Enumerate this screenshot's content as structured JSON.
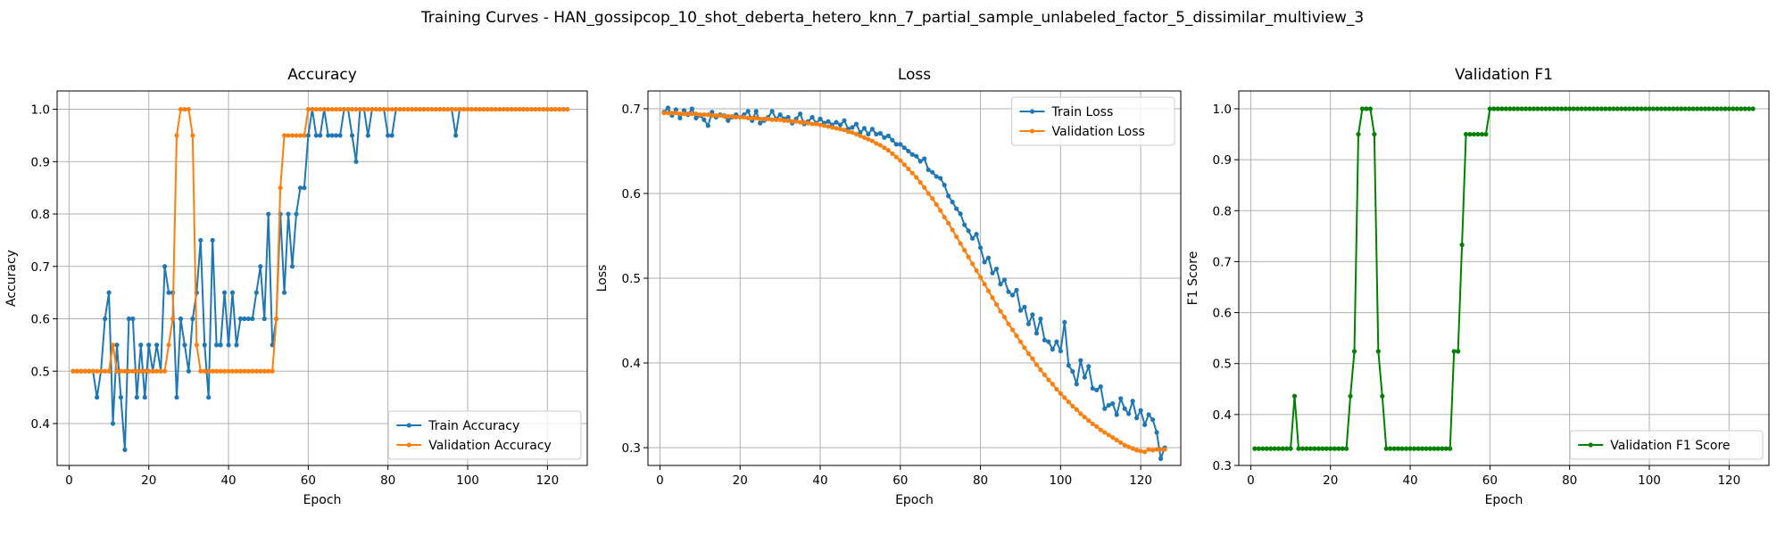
{
  "figure_title": "Training Curves - HAN_gossipcop_10_shot_deberta_hetero_knn_7_partial_sample_unlabeled_factor_5_dissimilar_multiview_3",
  "chart_data": [
    {
      "type": "line",
      "title": "Accuracy",
      "xlabel": "Epoch",
      "ylabel": "Accuracy",
      "xlim": [
        -3,
        130
      ],
      "ylim": [
        0.32,
        1.035
      ],
      "xticks": [
        0,
        20,
        40,
        60,
        80,
        100,
        120
      ],
      "yticks": [
        0.4,
        0.5,
        0.6,
        0.7,
        0.8,
        0.9,
        1.0
      ],
      "xtick_labels": [
        "0",
        "20",
        "40",
        "60",
        "80",
        "100",
        "120"
      ],
      "ytick_labels": [
        "0.4",
        "0.5",
        "0.6",
        "0.7",
        "0.8",
        "0.9",
        "1.0"
      ],
      "grid": true,
      "legend_position": "bottom-right",
      "series": [
        {
          "name": "Train Accuracy",
          "color": "#1f77b4",
          "values": [
            0.5,
            0.5,
            0.5,
            0.5,
            0.5,
            0.5,
            0.45,
            0.5,
            0.6,
            0.65,
            0.4,
            0.55,
            0.45,
            0.35,
            0.6,
            0.6,
            0.45,
            0.55,
            0.45,
            0.55,
            0.5,
            0.55,
            0.5,
            0.7,
            0.65,
            0.65,
            0.45,
            0.6,
            0.55,
            0.5,
            0.6,
            0.65,
            0.75,
            0.55,
            0.45,
            0.75,
            0.55,
            0.55,
            0.65,
            0.55,
            0.65,
            0.55,
            0.6,
            0.6,
            0.6,
            0.6,
            0.65,
            0.7,
            0.6,
            0.8,
            0.55,
            0.6,
            0.8,
            0.65,
            0.8,
            0.7,
            0.8,
            0.85,
            0.85,
            0.95,
            1.0,
            0.95,
            0.95,
            1.0,
            0.95,
            0.95,
            0.95,
            0.95,
            1.0,
            1.0,
            0.95,
            0.9,
            1.0,
            1.0,
            0.95,
            1.0,
            1.0,
            1.0,
            1.0,
            0.95,
            0.95,
            1.0,
            1.0,
            1.0,
            1.0,
            1.0,
            1.0,
            1.0,
            1.0,
            1.0,
            1.0,
            1.0,
            1.0,
            1.0,
            1.0,
            1.0,
            0.95,
            1.0,
            1.0,
            1.0,
            1.0,
            1.0,
            1.0,
            1.0,
            1.0,
            1.0,
            1.0,
            1.0,
            1.0,
            1.0,
            1.0,
            1.0,
            1.0,
            1.0,
            1.0,
            1.0,
            1.0,
            1.0,
            1.0,
            1.0,
            1.0,
            1.0,
            1.0,
            1.0,
            1.0
          ]
        },
        {
          "name": "Validation Accuracy",
          "color": "#ff7f0e",
          "values": [
            0.5,
            0.5,
            0.5,
            0.5,
            0.5,
            0.5,
            0.5,
            0.5,
            0.5,
            0.5,
            0.55,
            0.5,
            0.5,
            0.5,
            0.5,
            0.5,
            0.5,
            0.5,
            0.5,
            0.5,
            0.5,
            0.5,
            0.5,
            0.5,
            0.55,
            0.6,
            0.95,
            1.0,
            1.0,
            1.0,
            0.95,
            0.55,
            0.5,
            0.5,
            0.5,
            0.5,
            0.5,
            0.5,
            0.5,
            0.5,
            0.5,
            0.5,
            0.5,
            0.5,
            0.5,
            0.5,
            0.5,
            0.5,
            0.5,
            0.5,
            0.5,
            0.6,
            0.85,
            0.95,
            0.95,
            0.95,
            0.95,
            0.95,
            0.95,
            1.0,
            1.0,
            1.0,
            1.0,
            1.0,
            1.0,
            1.0,
            1.0,
            1.0,
            1.0,
            1.0,
            1.0,
            1.0,
            1.0,
            1.0,
            1.0,
            1.0,
            1.0,
            1.0,
            1.0,
            1.0,
            1.0,
            1.0,
            1.0,
            1.0,
            1.0,
            1.0,
            1.0,
            1.0,
            1.0,
            1.0,
            1.0,
            1.0,
            1.0,
            1.0,
            1.0,
            1.0,
            1.0,
            1.0,
            1.0,
            1.0,
            1.0,
            1.0,
            1.0,
            1.0,
            1.0,
            1.0,
            1.0,
            1.0,
            1.0,
            1.0,
            1.0,
            1.0,
            1.0,
            1.0,
            1.0,
            1.0,
            1.0,
            1.0,
            1.0,
            1.0,
            1.0,
            1.0,
            1.0,
            1.0,
            1.0
          ]
        }
      ]
    },
    {
      "type": "line",
      "title": "Loss",
      "xlabel": "Epoch",
      "ylabel": "Loss",
      "xlim": [
        -3,
        130
      ],
      "ylim": [
        0.279,
        0.721
      ],
      "xticks": [
        0,
        20,
        40,
        60,
        80,
        100,
        120
      ],
      "yticks": [
        0.3,
        0.4,
        0.5,
        0.6,
        0.7
      ],
      "xtick_labels": [
        "0",
        "20",
        "40",
        "60",
        "80",
        "100",
        "120"
      ],
      "ytick_labels": [
        "0.3",
        "0.4",
        "0.5",
        "0.6",
        "0.7"
      ],
      "grid": true,
      "legend_position": "top-right",
      "series": [
        {
          "name": "Train Loss",
          "color": "#1f77b4",
          "values": [
            0.696,
            0.701,
            0.692,
            0.699,
            0.689,
            0.698,
            0.693,
            0.7,
            0.689,
            0.692,
            0.687,
            0.68,
            0.696,
            0.69,
            0.693,
            0.692,
            0.686,
            0.69,
            0.693,
            0.69,
            0.693,
            0.697,
            0.686,
            0.697,
            0.683,
            0.686,
            0.69,
            0.697,
            0.688,
            0.693,
            0.688,
            0.69,
            0.683,
            0.688,
            0.694,
            0.682,
            0.685,
            0.69,
            0.683,
            0.688,
            0.683,
            0.685,
            0.681,
            0.684,
            0.681,
            0.686,
            0.676,
            0.678,
            0.682,
            0.672,
            0.677,
            0.67,
            0.676,
            0.67,
            0.671,
            0.666,
            0.668,
            0.663,
            0.658,
            0.658,
            0.654,
            0.65,
            0.646,
            0.644,
            0.638,
            0.641,
            0.628,
            0.625,
            0.62,
            0.618,
            0.61,
            0.597,
            0.59,
            0.582,
            0.576,
            0.563,
            0.556,
            0.547,
            0.552,
            0.536,
            0.519,
            0.524,
            0.506,
            0.511,
            0.493,
            0.498,
            0.484,
            0.48,
            0.486,
            0.462,
            0.466,
            0.446,
            0.457,
            0.435,
            0.452,
            0.427,
            0.425,
            0.416,
            0.425,
            0.414,
            0.448,
            0.397,
            0.39,
            0.375,
            0.403,
            0.383,
            0.396,
            0.37,
            0.368,
            0.372,
            0.346,
            0.35,
            0.352,
            0.339,
            0.358,
            0.346,
            0.34,
            0.355,
            0.335,
            0.344,
            0.327,
            0.339,
            0.333,
            0.318,
            0.287,
            0.3
          ]
        },
        {
          "name": "Validation Loss",
          "color": "#ff7f0e",
          "values": [
            0.695,
            0.695,
            0.695,
            0.695,
            0.694,
            0.694,
            0.694,
            0.694,
            0.694,
            0.693,
            0.693,
            0.693,
            0.692,
            0.692,
            0.692,
            0.691,
            0.691,
            0.691,
            0.69,
            0.69,
            0.69,
            0.689,
            0.689,
            0.689,
            0.688,
            0.688,
            0.688,
            0.687,
            0.687,
            0.687,
            0.686,
            0.686,
            0.685,
            0.685,
            0.684,
            0.684,
            0.683,
            0.682,
            0.682,
            0.681,
            0.68,
            0.679,
            0.678,
            0.677,
            0.676,
            0.675,
            0.673,
            0.672,
            0.67,
            0.668,
            0.666,
            0.664,
            0.662,
            0.659,
            0.657,
            0.654,
            0.651,
            0.647,
            0.643,
            0.639,
            0.634,
            0.629,
            0.624,
            0.619,
            0.613,
            0.607,
            0.6,
            0.594,
            0.587,
            0.58,
            0.572,
            0.565,
            0.557,
            0.549,
            0.541,
            0.533,
            0.525,
            0.517,
            0.509,
            0.501,
            0.493,
            0.485,
            0.477,
            0.469,
            0.461,
            0.454,
            0.446,
            0.439,
            0.432,
            0.425,
            0.418,
            0.411,
            0.405,
            0.398,
            0.392,
            0.386,
            0.38,
            0.375,
            0.369,
            0.364,
            0.359,
            0.354,
            0.349,
            0.345,
            0.34,
            0.336,
            0.332,
            0.328,
            0.325,
            0.321,
            0.318,
            0.315,
            0.312,
            0.309,
            0.306,
            0.303,
            0.301,
            0.299,
            0.297,
            0.296,
            0.295,
            0.298,
            0.297,
            0.298,
            0.298,
            0.298
          ]
        }
      ]
    },
    {
      "type": "line",
      "title": "Validation F1",
      "xlabel": "Epoch",
      "ylabel": "F1 Score",
      "xlim": [
        -3,
        130
      ],
      "ylim": [
        0.3,
        1.035
      ],
      "xticks": [
        0,
        20,
        40,
        60,
        80,
        100,
        120
      ],
      "yticks": [
        0.3,
        0.4,
        0.5,
        0.6,
        0.7,
        0.8,
        0.9,
        1.0
      ],
      "xtick_labels": [
        "0",
        "20",
        "40",
        "60",
        "80",
        "100",
        "120"
      ],
      "ytick_labels": [
        "0.3",
        "0.4",
        "0.5",
        "0.6",
        "0.7",
        "0.8",
        "0.9",
        "1.0"
      ],
      "grid": true,
      "legend_position": "bottom-right",
      "series": [
        {
          "name": "Validation F1 Score",
          "color": "#008000",
          "values": [
            0.333,
            0.333,
            0.333,
            0.333,
            0.333,
            0.333,
            0.333,
            0.333,
            0.333,
            0.333,
            0.436,
            0.333,
            0.333,
            0.333,
            0.333,
            0.333,
            0.333,
            0.333,
            0.333,
            0.333,
            0.333,
            0.333,
            0.333,
            0.333,
            0.436,
            0.524,
            0.95,
            1.0,
            1.0,
            1.0,
            0.95,
            0.524,
            0.436,
            0.333,
            0.333,
            0.333,
            0.333,
            0.333,
            0.333,
            0.333,
            0.333,
            0.333,
            0.333,
            0.333,
            0.333,
            0.333,
            0.333,
            0.333,
            0.333,
            0.333,
            0.524,
            0.524,
            0.733,
            0.95,
            0.95,
            0.95,
            0.95,
            0.95,
            0.95,
            1.0,
            1.0,
            1.0,
            1.0,
            1.0,
            1.0,
            1.0,
            1.0,
            1.0,
            1.0,
            1.0,
            1.0,
            1.0,
            1.0,
            1.0,
            1.0,
            1.0,
            1.0,
            1.0,
            1.0,
            1.0,
            1.0,
            1.0,
            1.0,
            1.0,
            1.0,
            1.0,
            1.0,
            1.0,
            1.0,
            1.0,
            1.0,
            1.0,
            1.0,
            1.0,
            1.0,
            1.0,
            1.0,
            1.0,
            1.0,
            1.0,
            1.0,
            1.0,
            1.0,
            1.0,
            1.0,
            1.0,
            1.0,
            1.0,
            1.0,
            1.0,
            1.0,
            1.0,
            1.0,
            1.0,
            1.0,
            1.0,
            1.0,
            1.0,
            1.0,
            1.0,
            1.0,
            1.0,
            1.0,
            1.0,
            1.0,
            1.0
          ]
        }
      ]
    }
  ]
}
